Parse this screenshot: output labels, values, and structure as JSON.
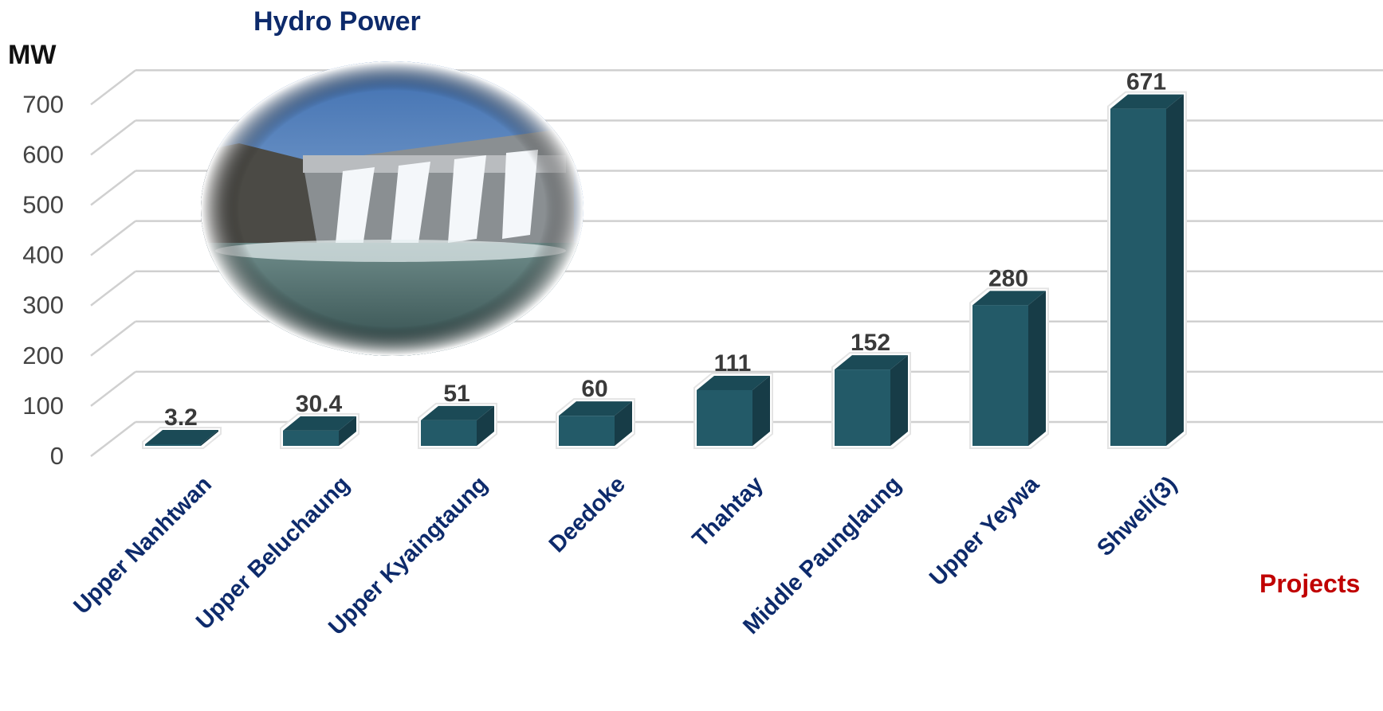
{
  "chart_data": {
    "type": "bar",
    "style": "3d-column",
    "title": "Hydro Power",
    "ylabel": "MW",
    "xlabel": "Projects",
    "categories": [
      "Upper Nanhtwan",
      "Upper Beluchaung",
      "Upper Kyaingtaung",
      "Deedoke",
      "Thahtay",
      "Middle Paunglaung",
      "Upper Yeywa",
      "Shweli(3)"
    ],
    "values": [
      3.2,
      30.4,
      51,
      60,
      111,
      152,
      280,
      671
    ],
    "data_labels": [
      "3.2",
      "30.4",
      "51",
      "60",
      "111",
      "152",
      "280",
      "671"
    ],
    "ylim": [
      0,
      700
    ],
    "yticks": [
      0,
      100,
      200,
      300,
      400,
      500,
      600,
      700
    ],
    "ytick_labels": [
      "0",
      "100",
      "200",
      "300",
      "400",
      "500",
      "600",
      "700"
    ],
    "grid": true,
    "colors": {
      "bar_front": "#235a68",
      "bar_top": "#1b4a56",
      "bar_side": "#173c47",
      "gridline": "#d0d0d0"
    }
  },
  "image": {
    "subject": "dam-spillway-photo"
  }
}
